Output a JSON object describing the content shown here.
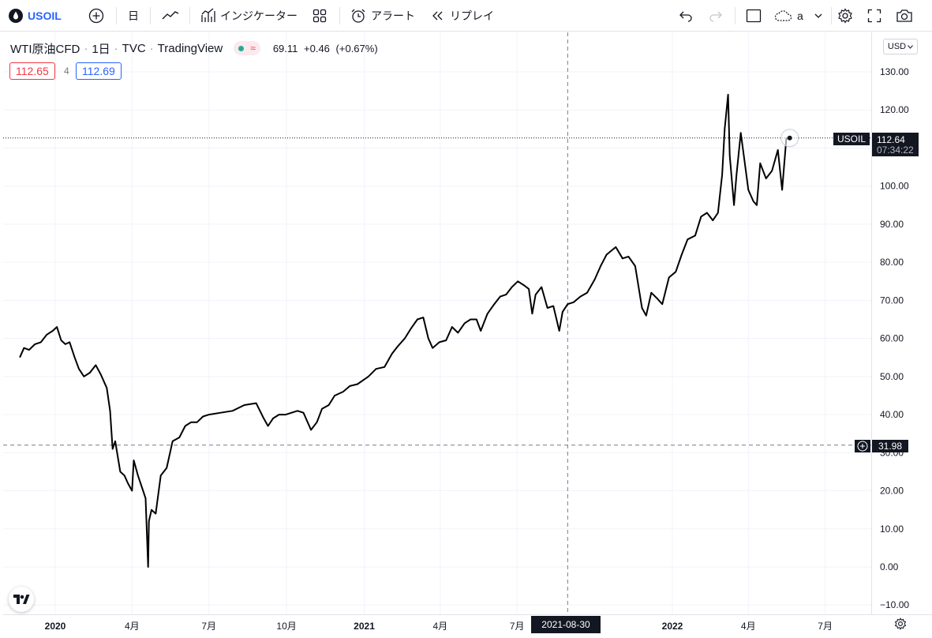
{
  "toolbar": {
    "symbol": "USOIL",
    "interval": "日",
    "indicators_label": "インジケーター",
    "alert_label": "アラート",
    "replay_label": "リプレイ",
    "layout_label": "a"
  },
  "legend": {
    "title": "WTI原油CFD",
    "interval": "1日",
    "source": "TVC",
    "provider": "TradingView",
    "status_symbol": "≈",
    "ohlc": {
      "value": "69.11",
      "change": "+0.46",
      "change_pct": "(+0.67%)"
    }
  },
  "quote": {
    "bid": "112.65",
    "spread": "4",
    "ask": "112.69"
  },
  "price_scale": {
    "currency": "USD",
    "ticks": [
      "130.00",
      "120.00",
      "110.00",
      "100.00",
      "90.00",
      "80.00",
      "70.00",
      "60.00",
      "50.00",
      "40.00",
      "30.00",
      "20.00",
      "10.00",
      "0.00",
      "−10.00"
    ],
    "last_price": {
      "symbol": "USOIL",
      "value": "112.64",
      "countdown": "07:34:22"
    },
    "crosshair_price": "31.98"
  },
  "time_scale": {
    "labels": [
      {
        "text": "2020",
        "bold": true
      },
      {
        "text": "4月",
        "bold": false
      },
      {
        "text": "7月",
        "bold": false
      },
      {
        "text": "10月",
        "bold": false
      },
      {
        "text": "2021",
        "bold": true
      },
      {
        "text": "4月",
        "bold": false
      },
      {
        "text": "7月",
        "bold": false
      },
      {
        "text": "2022",
        "bold": true
      },
      {
        "text": "4月",
        "bold": false
      },
      {
        "text": "7月",
        "bold": false
      }
    ],
    "crosshair_date": "2021-08-30"
  },
  "colors": {
    "accent": "#2962ff",
    "bid": "#f23645",
    "ask": "#2962ff",
    "series": "#000000",
    "label_bg": "#131722"
  },
  "chart_data": {
    "type": "line",
    "ylim": [
      -10,
      130
    ],
    "xlim": [
      "2019-11-20",
      "2022-08-20"
    ],
    "series": [
      {
        "points": [
          [
            "2019-11-20",
            55
          ],
          [
            "2019-11-25",
            57.5
          ],
          [
            "2019-12-01",
            57
          ],
          [
            "2019-12-08",
            58.5
          ],
          [
            "2019-12-15",
            59
          ],
          [
            "2019-12-22",
            61
          ],
          [
            "2019-12-29",
            62
          ],
          [
            "2020-01-03",
            63
          ],
          [
            "2020-01-08",
            59.5
          ],
          [
            "2020-01-13",
            58.5
          ],
          [
            "2020-01-18",
            59
          ],
          [
            "2020-01-24",
            55
          ],
          [
            "2020-01-29",
            52
          ],
          [
            "2020-02-04",
            50
          ],
          [
            "2020-02-11",
            51
          ],
          [
            "2020-02-18",
            53
          ],
          [
            "2020-02-24",
            50.5
          ],
          [
            "2020-03-02",
            47
          ],
          [
            "2020-03-06",
            41
          ],
          [
            "2020-03-09",
            31
          ],
          [
            "2020-03-12",
            33
          ],
          [
            "2020-03-18",
            25
          ],
          [
            "2020-03-23",
            24
          ],
          [
            "2020-03-27",
            22
          ],
          [
            "2020-04-01",
            20
          ],
          [
            "2020-04-03",
            28
          ],
          [
            "2020-04-08",
            24
          ],
          [
            "2020-04-14",
            20
          ],
          [
            "2020-04-17",
            18
          ],
          [
            "2020-04-20",
            0
          ],
          [
            "2020-04-21",
            12
          ],
          [
            "2020-04-24",
            15
          ],
          [
            "2020-04-29",
            14
          ],
          [
            "2020-05-05",
            24
          ],
          [
            "2020-05-12",
            26
          ],
          [
            "2020-05-19",
            33
          ],
          [
            "2020-05-27",
            34
          ],
          [
            "2020-06-03",
            37
          ],
          [
            "2020-06-10",
            38
          ],
          [
            "2020-06-17",
            38
          ],
          [
            "2020-06-24",
            39.5
          ],
          [
            "2020-07-01",
            40
          ],
          [
            "2020-07-15",
            40.5
          ],
          [
            "2020-07-29",
            41
          ],
          [
            "2020-08-12",
            42.5
          ],
          [
            "2020-08-26",
            43
          ],
          [
            "2020-09-04",
            39
          ],
          [
            "2020-09-09",
            37
          ],
          [
            "2020-09-15",
            39
          ],
          [
            "2020-09-22",
            40
          ],
          [
            "2020-09-30",
            40
          ],
          [
            "2020-10-07",
            40.5
          ],
          [
            "2020-10-14",
            41
          ],
          [
            "2020-10-21",
            40.5
          ],
          [
            "2020-10-30",
            36
          ],
          [
            "2020-11-06",
            38
          ],
          [
            "2020-11-12",
            41.5
          ],
          [
            "2020-11-20",
            42.5
          ],
          [
            "2020-11-27",
            45
          ],
          [
            "2020-12-07",
            46
          ],
          [
            "2020-12-15",
            47.5
          ],
          [
            "2020-12-24",
            48
          ],
          [
            "2021-01-06",
            50
          ],
          [
            "2021-01-15",
            52
          ],
          [
            "2021-01-25",
            52.5
          ],
          [
            "2021-02-03",
            56
          ],
          [
            "2021-02-10",
            58
          ],
          [
            "2021-02-18",
            60
          ],
          [
            "2021-02-25",
            62.5
          ],
          [
            "2021-03-05",
            65
          ],
          [
            "2021-03-12",
            65.5
          ],
          [
            "2021-03-18",
            60
          ],
          [
            "2021-03-23",
            57.5
          ],
          [
            "2021-03-31",
            59
          ],
          [
            "2021-04-08",
            59.5
          ],
          [
            "2021-04-15",
            63
          ],
          [
            "2021-04-22",
            61.5
          ],
          [
            "2021-04-30",
            64
          ],
          [
            "2021-05-07",
            65
          ],
          [
            "2021-05-14",
            65
          ],
          [
            "2021-05-19",
            62
          ],
          [
            "2021-05-27",
            66.5
          ],
          [
            "2021-06-04",
            69
          ],
          [
            "2021-06-11",
            71
          ],
          [
            "2021-06-18",
            71.5
          ],
          [
            "2021-06-25",
            73.5
          ],
          [
            "2021-07-02",
            75
          ],
          [
            "2021-07-09",
            74
          ],
          [
            "2021-07-15",
            73
          ],
          [
            "2021-07-19",
            66.5
          ],
          [
            "2021-07-23",
            71.5
          ],
          [
            "2021-07-30",
            73.5
          ],
          [
            "2021-08-06",
            68
          ],
          [
            "2021-08-13",
            68.5
          ],
          [
            "2021-08-20",
            62
          ],
          [
            "2021-08-24",
            67
          ],
          [
            "2021-08-30",
            69
          ],
          [
            "2021-09-06",
            69.5
          ],
          [
            "2021-09-14",
            71
          ],
          [
            "2021-09-22",
            72
          ],
          [
            "2021-10-01",
            75.5
          ],
          [
            "2021-10-08",
            79
          ],
          [
            "2021-10-15",
            82
          ],
          [
            "2021-10-26",
            84
          ],
          [
            "2021-11-03",
            81
          ],
          [
            "2021-11-10",
            81.5
          ],
          [
            "2021-11-18",
            79
          ],
          [
            "2021-11-26",
            68
          ],
          [
            "2021-12-01",
            66
          ],
          [
            "2021-12-07",
            72
          ],
          [
            "2021-12-14",
            70.5
          ],
          [
            "2021-12-20",
            69
          ],
          [
            "2021-12-28",
            76
          ],
          [
            "2022-01-05",
            77.5
          ],
          [
            "2022-01-12",
            82
          ],
          [
            "2022-01-19",
            86
          ],
          [
            "2022-01-28",
            87
          ],
          [
            "2022-02-04",
            92
          ],
          [
            "2022-02-11",
            93
          ],
          [
            "2022-02-18",
            91
          ],
          [
            "2022-02-24",
            93
          ],
          [
            "2022-03-01",
            103
          ],
          [
            "2022-03-04",
            115
          ],
          [
            "2022-03-08",
            124
          ],
          [
            "2022-03-10",
            108
          ],
          [
            "2022-03-15",
            95
          ],
          [
            "2022-03-18",
            103
          ],
          [
            "2022-03-23",
            114
          ],
          [
            "2022-03-29",
            104
          ],
          [
            "2022-04-01",
            99
          ],
          [
            "2022-04-07",
            96
          ],
          [
            "2022-04-11",
            95
          ],
          [
            "2022-04-15",
            106
          ],
          [
            "2022-04-22",
            102
          ],
          [
            "2022-04-29",
            104
          ],
          [
            "2022-05-06",
            109.5
          ],
          [
            "2022-05-11",
            99
          ],
          [
            "2022-05-16",
            112.5
          ],
          [
            "2022-05-20",
            112.64
          ]
        ]
      }
    ]
  }
}
